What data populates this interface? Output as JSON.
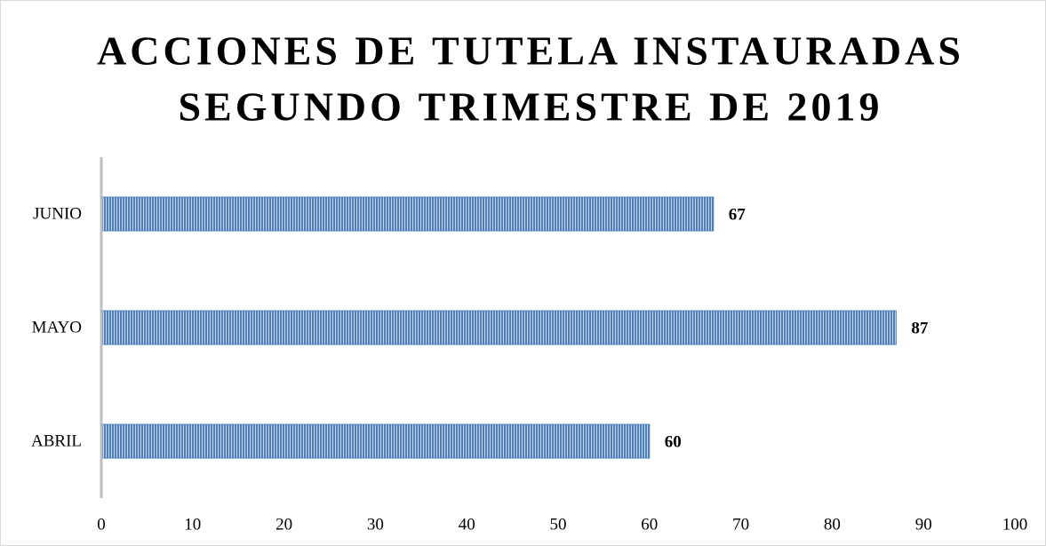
{
  "chart_data": {
    "type": "bar",
    "orientation": "horizontal",
    "title": [
      "ACCIONES DE TUTELA INSTAURADAS",
      "SEGUNDO TRIMESTRE DE 2019"
    ],
    "categories": [
      "ABRIL",
      "MAYO",
      "JUNIO"
    ],
    "values": [
      60,
      87,
      67
    ],
    "color": "#4f81bd",
    "xlim": [
      0,
      100
    ],
    "xticks": [
      0,
      10,
      20,
      30,
      40,
      50,
      60,
      70,
      80,
      90,
      100
    ],
    "grid": false
  }
}
